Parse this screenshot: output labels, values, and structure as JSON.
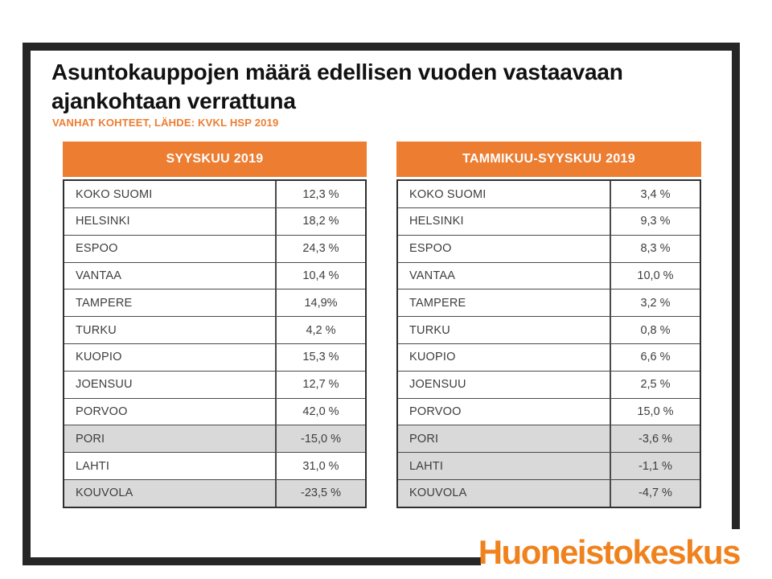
{
  "slide": {
    "title": "Asuntokauppojen määrä edellisen vuoden vastaavaan ajankohtaan verrattuna",
    "subtitle": "VANHAT KOHTEET, LÄHDE: KVKL HSP 2019",
    "logo_text": "Huoneistokeskus"
  },
  "colors": {
    "accent_orange": "#ED7D31",
    "logo_orange": "#F0821E",
    "frame_dark": "#262626",
    "negative_row_gray": "#D9D9D9"
  },
  "tables": [
    {
      "header": "SYYSKUU 2019",
      "rows": [
        {
          "label": "KOKO SUOMI",
          "value": "12,3 %",
          "negative": false
        },
        {
          "label": "HELSINKI",
          "value": "18,2 %",
          "negative": false
        },
        {
          "label": "ESPOO",
          "value": "24,3 %",
          "negative": false
        },
        {
          "label": "VANTAA",
          "value": "10,4 %",
          "negative": false
        },
        {
          "label": "TAMPERE",
          "value": "14,9%",
          "negative": false
        },
        {
          "label": "TURKU",
          "value": "4,2 %",
          "negative": false
        },
        {
          "label": "KUOPIO",
          "value": "15,3 %",
          "negative": false
        },
        {
          "label": "JOENSUU",
          "value": "12,7 %",
          "negative": false
        },
        {
          "label": "PORVOO",
          "value": "42,0 %",
          "negative": false
        },
        {
          "label": "PORI",
          "value": "-15,0 %",
          "negative": true
        },
        {
          "label": "LAHTI",
          "value": "31,0 %",
          "negative": false
        },
        {
          "label": "KOUVOLA",
          "value": "-23,5 %",
          "negative": true
        }
      ]
    },
    {
      "header": "TAMMIKUU-SYYSKUU 2019",
      "rows": [
        {
          "label": "KOKO SUOMI",
          "value": "3,4 %",
          "negative": false
        },
        {
          "label": "HELSINKI",
          "value": "9,3 %",
          "negative": false
        },
        {
          "label": "ESPOO",
          "value": "8,3 %",
          "negative": false
        },
        {
          "label": "VANTAA",
          "value": "10,0 %",
          "negative": false
        },
        {
          "label": "TAMPERE",
          "value": "3,2 %",
          "negative": false
        },
        {
          "label": "TURKU",
          "value": "0,8 %",
          "negative": false
        },
        {
          "label": "KUOPIO",
          "value": "6,6 %",
          "negative": false
        },
        {
          "label": "JOENSUU",
          "value": "2,5 %",
          "negative": false
        },
        {
          "label": "PORVOO",
          "value": "15,0 %",
          "negative": false
        },
        {
          "label": "PORI",
          "value": "-3,6 %",
          "negative": true
        },
        {
          "label": "LAHTI",
          "value": "-1,1 %",
          "negative": true
        },
        {
          "label": "KOUVOLA",
          "value": "-4,7 %",
          "negative": true
        }
      ]
    }
  ]
}
